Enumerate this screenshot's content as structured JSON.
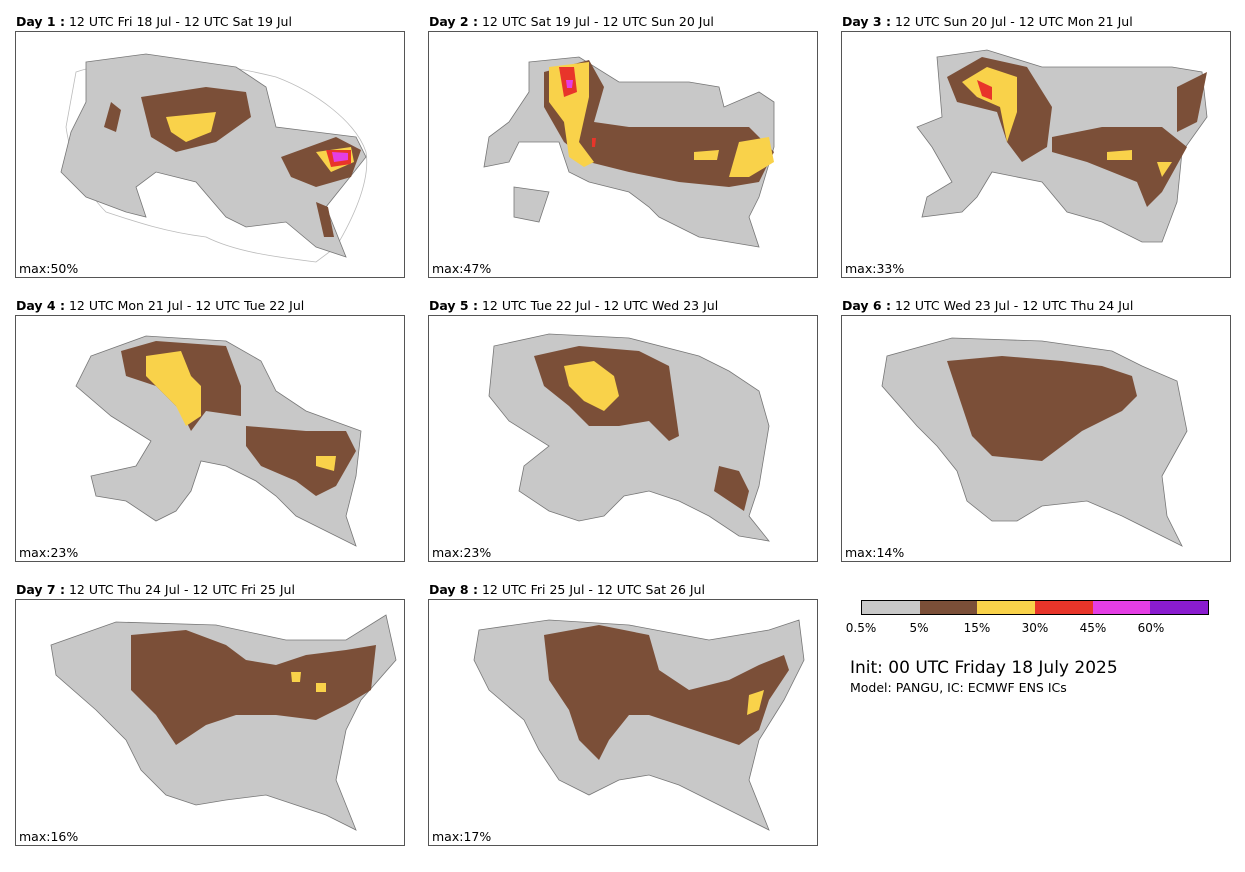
{
  "panels": [
    {
      "day": "Day 1 :",
      "period": "12 UTC Fri 18 Jul - 12 UTC Sat 19 Jul",
      "max": "max:50%"
    },
    {
      "day": "Day 2 :",
      "period": "12 UTC Sat 19 Jul - 12 UTC Sun 20 Jul",
      "max": "max:47%"
    },
    {
      "day": "Day 3 :",
      "period": "12 UTC Sun 20 Jul - 12 UTC Mon 21 Jul",
      "max": "max:33%"
    },
    {
      "day": "Day 4 :",
      "period": "12 UTC Mon 21 Jul - 12 UTC Tue 22 Jul",
      "max": "max:23%"
    },
    {
      "day": "Day 5 :",
      "period": "12 UTC Tue 22 Jul - 12 UTC Wed 23 Jul",
      "max": "max:23%"
    },
    {
      "day": "Day 6 :",
      "period": "12 UTC Wed 23 Jul - 12 UTC Thu 24 Jul",
      "max": "max:14%"
    },
    {
      "day": "Day 7 :",
      "period": "12 UTC Thu 24 Jul - 12 UTC Fri 25 Jul",
      "max": "max:16%"
    },
    {
      "day": "Day 8 :",
      "period": "12 UTC Fri 25 Jul - 12 UTC Sat 26 Jul",
      "max": "max:17%"
    }
  ],
  "legend": {
    "colors": [
      "#c8c8c8",
      "#7b4f38",
      "#f9d24a",
      "#e8352a",
      "#e43ee4",
      "#8a1ccf"
    ],
    "ticks": [
      "0.5%",
      "5%",
      "15%",
      "30%",
      "45%",
      "60%"
    ]
  },
  "init": "Init: 00 UTC Friday 18 July 2025",
  "model": "Model: PANGU, IC: ECMWF ENS ICs",
  "colors": {
    "land_outline": "#aaaaaa",
    "border": "#555555"
  }
}
